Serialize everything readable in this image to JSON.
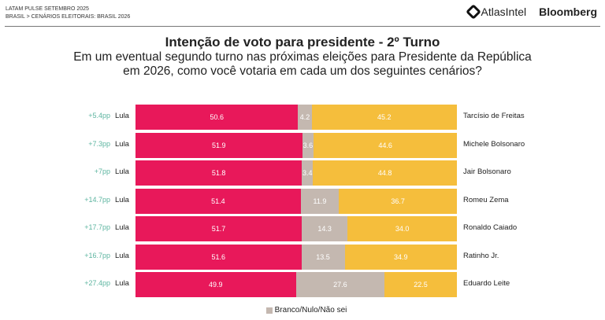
{
  "header": {
    "line1": "LATAM PULSE SETEMBRO 2025",
    "line2": "BRASIL > CENÁRIOS ELEITORAIS: BRASIL 2026",
    "brand1": "AtlasIntel",
    "brand2": "Bloomberg"
  },
  "chart_data": {
    "type": "bar",
    "stacked": true,
    "orientation": "horizontal",
    "title": "Intenção de voto para presidente - 2º Turno",
    "subtitle": "Em um eventual segundo turno nas próximas eleições para Presidente da República em 2026, como você votaria em cada um dos seguintes cenários?",
    "legend": [
      "Branco/Nulo/Não sei"
    ],
    "legend_position": "bottom",
    "colors": {
      "lula": "#E8185A",
      "blank": "#C4B8B0",
      "opponent": "#F5BE3C",
      "diff": "#5DB5A0"
    },
    "rows": [
      {
        "diff": "+5.4pp",
        "left": "Lula",
        "lula": 50.6,
        "blank": 4.2,
        "opponent_value": 45.2,
        "opponent": "Tarcísio de Freitas"
      },
      {
        "diff": "+7.3pp",
        "left": "Lula",
        "lula": 51.9,
        "blank": 3.6,
        "opponent_value": 44.6,
        "opponent": "Michele Bolsonaro"
      },
      {
        "diff": "+7pp",
        "left": "Lula",
        "lula": 51.8,
        "blank": 3.4,
        "opponent_value": 44.8,
        "opponent": "Jair Bolsonaro"
      },
      {
        "diff": "+14.7pp",
        "left": "Lula",
        "lula": 51.4,
        "blank": 11.9,
        "opponent_value": 36.7,
        "opponent": "Romeu Zema"
      },
      {
        "diff": "+17.7pp",
        "left": "Lula",
        "lula": 51.7,
        "blank": 14.3,
        "opponent_value": 34.0,
        "opponent": "Ronaldo Caiado"
      },
      {
        "diff": "+16.7pp",
        "left": "Lula",
        "lula": 51.6,
        "blank": 13.5,
        "opponent_value": 34.9,
        "opponent": "Ratinho Jr."
      },
      {
        "diff": "+27.4pp",
        "left": "Lula",
        "lula": 49.9,
        "blank": 27.6,
        "opponent_value": 22.5,
        "opponent": "Eduardo Leite"
      }
    ]
  }
}
